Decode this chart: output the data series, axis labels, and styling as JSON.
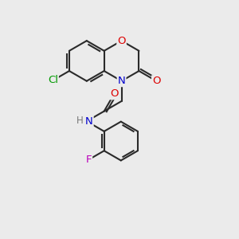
{
  "bg_color": "#ebebeb",
  "bond_color": "#2a2a2a",
  "atom_colors": {
    "O": "#dd0000",
    "N": "#0000cc",
    "Cl": "#009900",
    "F": "#bb00bb",
    "H": "#777777"
  },
  "bond_lw": 1.5,
  "font_size": 9.5
}
